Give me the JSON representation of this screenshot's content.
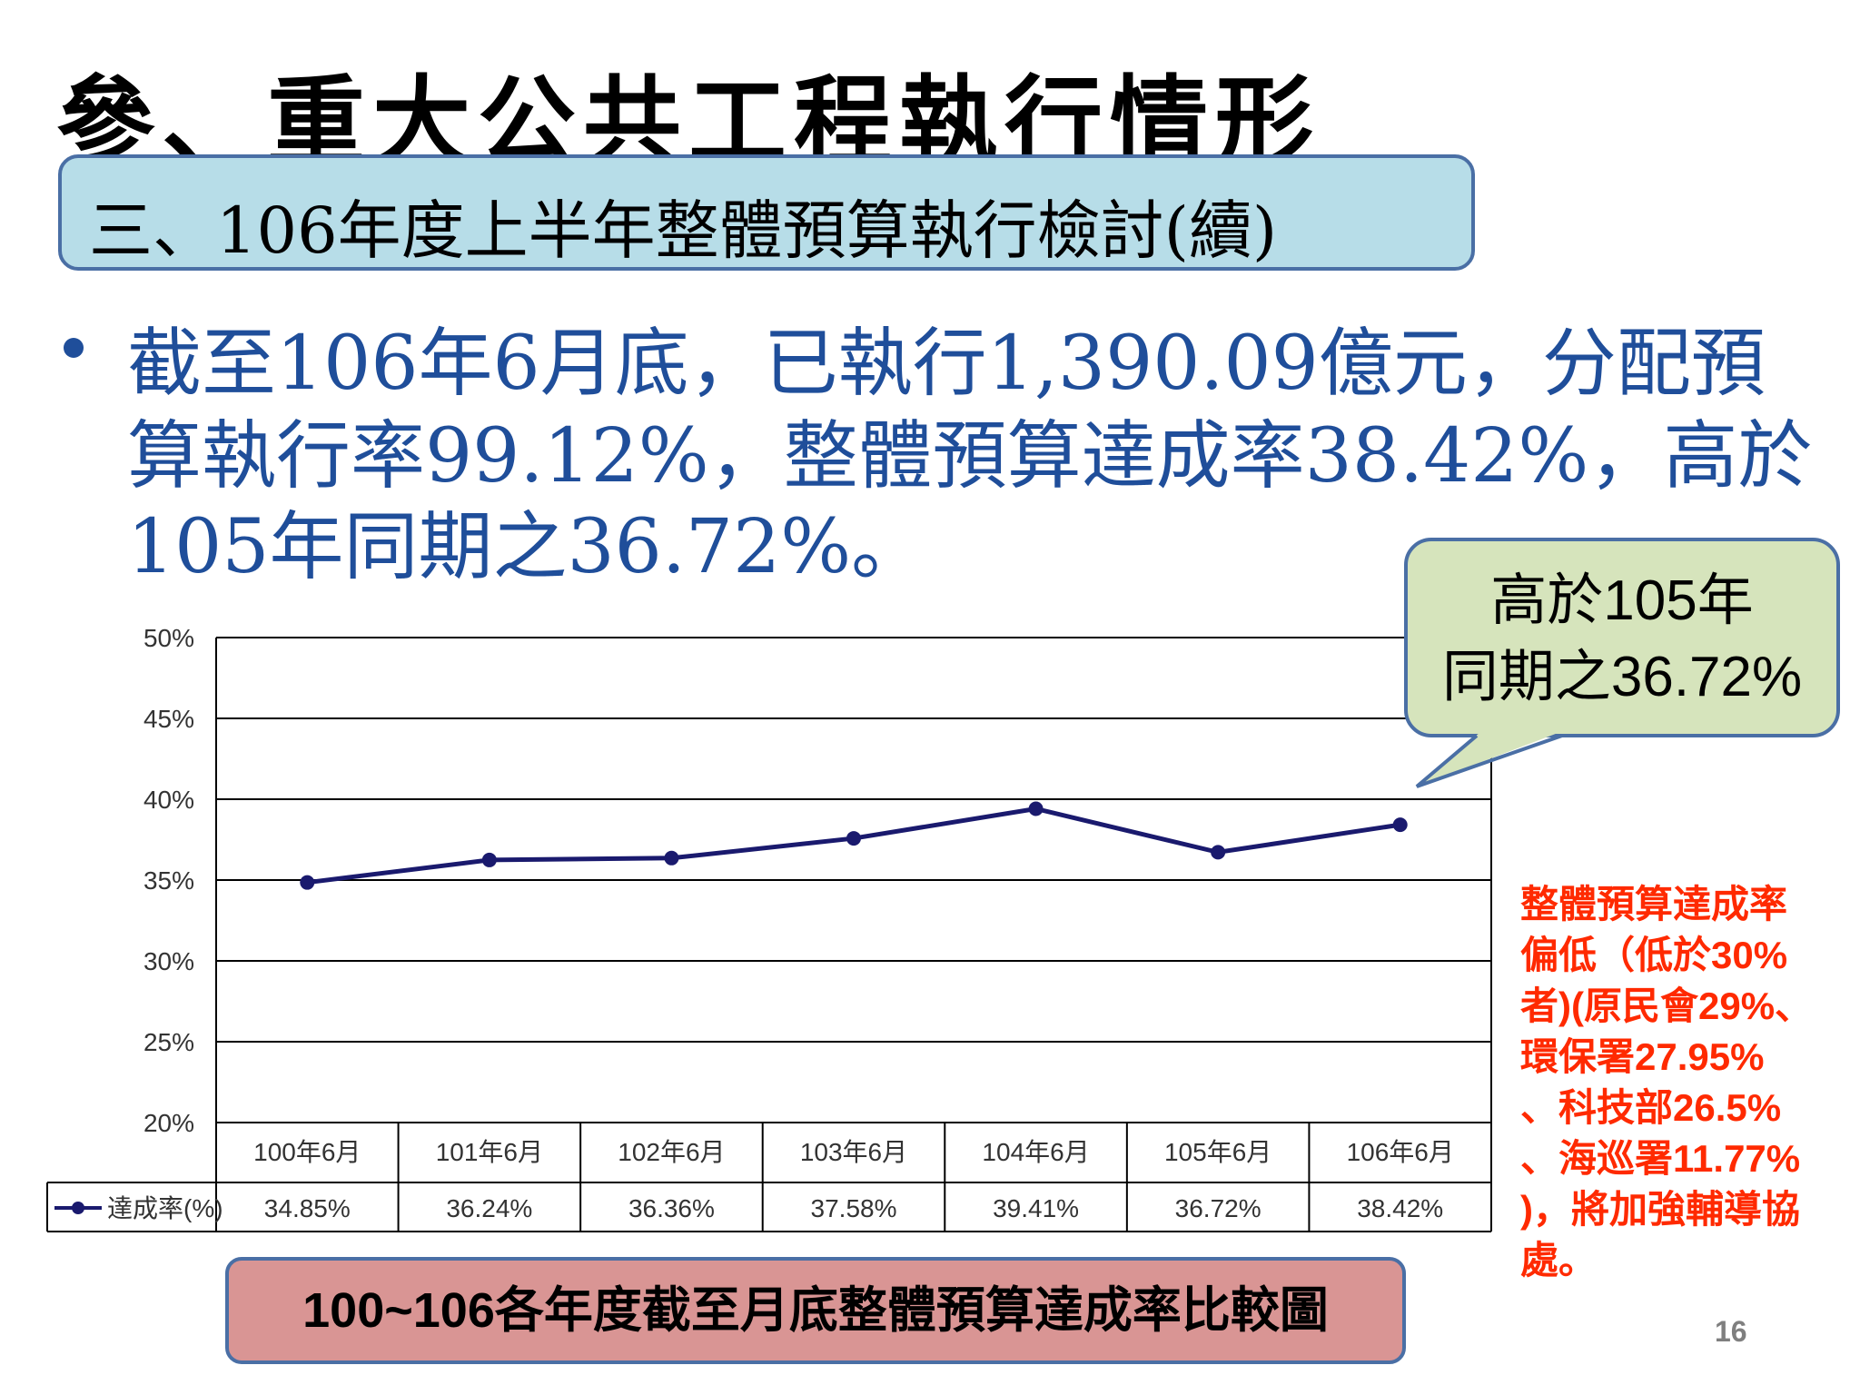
{
  "title": "參、重大公共工程執行情形",
  "subtitle": "三、106年度上半年整體預算執行檢討(續)",
  "bullet": {
    "line1": "截至106年6月底，已執行1,390.09億元，分配預",
    "line2": "算執行率99.12%，整體預算達成率38.42%，高於",
    "line3": "105年同期之36.72%。"
  },
  "callout": {
    "line1": "高於105年",
    "line2": "同期之36.72%"
  },
  "note": {
    "lines": [
      "整體預算達成率",
      "偏低（低於30%",
      "者)(原民會29%、",
      "環保署27.95%",
      "、科技部26.5%",
      "、海巡署11.77%",
      ")，將加強輔導協",
      "處。"
    ]
  },
  "caption": "100~106各年度截至月底整體預算達成率比較圖",
  "page_number": "16",
  "chart_data": {
    "type": "line",
    "categories": [
      "100年6月",
      "101年6月",
      "102年6月",
      "103年6月",
      "104年6月",
      "105年6月",
      "106年6月"
    ],
    "series": [
      {
        "name": "達成率(%)",
        "values": [
          34.85,
          36.24,
          36.36,
          37.58,
          39.41,
          36.72,
          38.42
        ],
        "labels": [
          "34.85%",
          "36.24%",
          "36.36%",
          "37.58%",
          "39.41%",
          "36.72%",
          "38.42%"
        ],
        "color": "#1a1a6e"
      }
    ],
    "yticks": [
      "20%",
      "25%",
      "30%",
      "35%",
      "40%",
      "45%",
      "50%"
    ],
    "ylim": [
      20,
      50
    ],
    "grid": true,
    "legend": "data-table"
  }
}
